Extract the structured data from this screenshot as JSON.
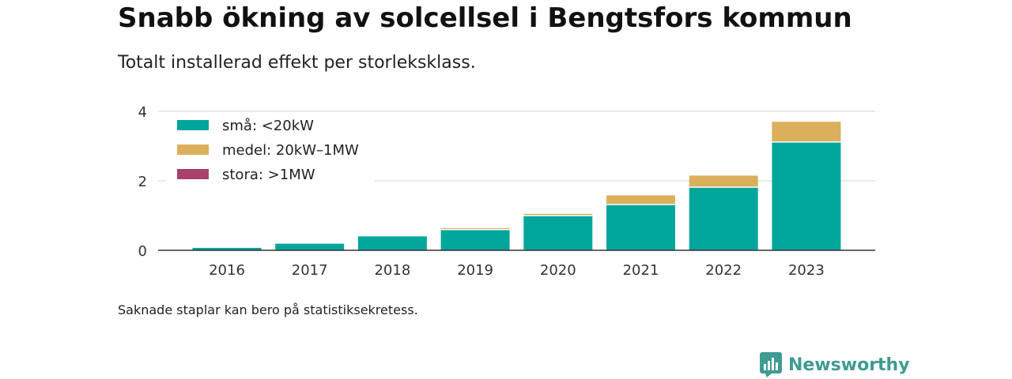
{
  "header": {
    "title": "Snabb ökning av solcellsel i Bengtsfors kommun",
    "subtitle": "Totalt installerad effekt per storleksklass."
  },
  "footer": {
    "note": "Saknade staplar kan bero på statistiksekretess.",
    "brand": "Newsworthy",
    "brand_color": "#3f9b93",
    "brand_icon": "bar-chart-speech-bubble-icon"
  },
  "chart_data": {
    "type": "bar",
    "stacked": true,
    "title": "Snabb ökning av solcellsel i Bengtsfors kommun",
    "subtitle": "Totalt installerad effekt per storleksklass.",
    "xlabel": "",
    "ylabel": "",
    "categories": [
      "2016",
      "2017",
      "2018",
      "2019",
      "2020",
      "2021",
      "2022",
      "2023"
    ],
    "series": [
      {
        "name": "små: <20kW",
        "color": "#00a69c",
        "values": [
          0.07,
          0.19,
          0.4,
          0.58,
          0.98,
          1.3,
          1.8,
          3.1
        ]
      },
      {
        "name": "medel: 20kW–1MW",
        "color": "#dbaf5c",
        "values": [
          0,
          0,
          0.03,
          0.06,
          0.07,
          0.28,
          0.35,
          0.6
        ]
      },
      {
        "name": "stora: >1MW",
        "color": "#a8416b",
        "values": [
          0,
          0,
          0,
          0,
          0,
          0,
          0,
          0
        ]
      }
    ],
    "ylim": [
      0,
      4
    ],
    "yticks": [
      0,
      2,
      4
    ],
    "grid": true,
    "legend_position": "top-left"
  }
}
